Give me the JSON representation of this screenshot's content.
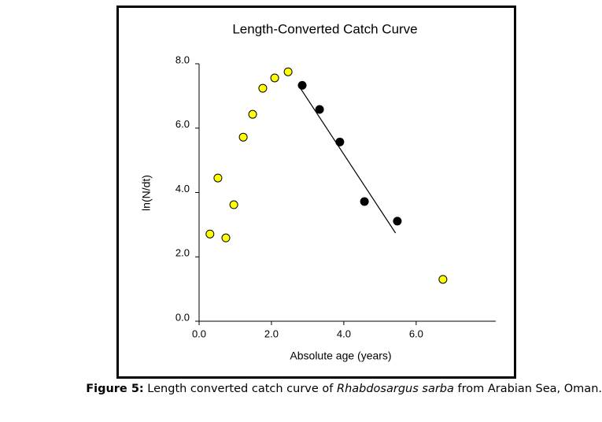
{
  "chart_data": {
    "type": "scatter",
    "title": "Length-Converted Catch Curve",
    "x_label": "Absolute age (years)",
    "y_label": "ln(N/dt)",
    "xlim": [
      0,
      8.2
    ],
    "ylim": [
      0,
      8
    ],
    "xticks": [
      {
        "value": 0,
        "label": "0.0"
      },
      {
        "value": 2,
        "label": "2.0"
      },
      {
        "value": 4,
        "label": "4.0"
      },
      {
        "value": 6,
        "label": "6.0"
      }
    ],
    "yticks": [
      {
        "value": 0,
        "label": "0.0"
      },
      {
        "value": 2,
        "label": "2.0"
      },
      {
        "value": 4,
        "label": "4.0"
      },
      {
        "value": 6,
        "label": "6.0"
      },
      {
        "value": 8,
        "label": "8.0"
      }
    ],
    "series": [
      {
        "color": "#ffff00",
        "x": [
          0.3,
          0.74,
          0.52,
          0.96,
          1.22,
          1.48,
          1.76,
          2.09,
          2.46,
          6.74
        ],
        "values": [
          2.71,
          2.59,
          4.45,
          3.62,
          5.72,
          6.43,
          7.24,
          7.56,
          7.75,
          1.3
        ]
      },
      {
        "color": "#000000",
        "x": [
          2.85,
          3.33,
          3.89,
          4.57,
          5.48
        ],
        "values": [
          7.33,
          6.58,
          5.57,
          3.72,
          3.11
        ]
      }
    ],
    "fit": {
      "color": "#000000",
      "x": [
        2.8,
        5.43
      ],
      "values": [
        7.24,
        2.74
      ]
    }
  },
  "caption": {
    "label": "Figure 5:",
    "text": " Length converted catch curve of ",
    "species": "Rhabdosargus sarba",
    "rest": " from Arabian Sea, Oman."
  }
}
